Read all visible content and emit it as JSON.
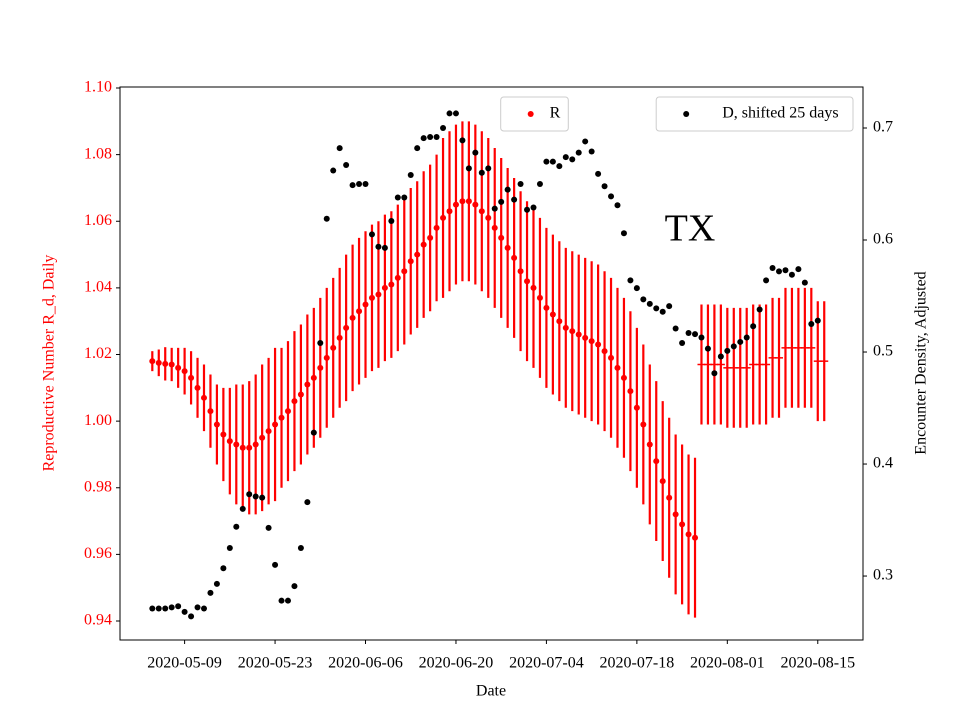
{
  "chart_data": {
    "type": "scatter",
    "annotation": "TX",
    "xlabel": "Date",
    "ylabel": "Reproductive Number R_d, Daily",
    "ylabel_color": "red",
    "y2label": "Encounter Density, Adjusted",
    "xlim": [
      "2020-04-29",
      "2020-08-22"
    ],
    "xticks": [
      "2020-05-09",
      "2020-05-23",
      "2020-06-06",
      "2020-06-20",
      "2020-07-04",
      "2020-07-18",
      "2020-08-01",
      "2020-08-15"
    ],
    "ylim": [
      0.9343,
      1.1003
    ],
    "yticks": [
      0.94,
      0.96,
      0.98,
      {
        "value": 1,
        "label": "1.00"
      },
      1.02,
      1.04,
      1.06,
      1.08,
      {
        "value": 1.1,
        "label": "1.10"
      }
    ],
    "y2lim": [
      0.2429,
      0.7366
    ],
    "y2ticks": [
      0.3,
      0.4,
      0.5,
      0.6,
      0.7
    ],
    "x": [
      "2020-05-04",
      "2020-05-05",
      "2020-05-06",
      "2020-05-07",
      "2020-05-08",
      "2020-05-09",
      "2020-05-10",
      "2020-05-11",
      "2020-05-12",
      "2020-05-13",
      "2020-05-14",
      "2020-05-15",
      "2020-05-16",
      "2020-05-17",
      "2020-05-18",
      "2020-05-19",
      "2020-05-20",
      "2020-05-21",
      "2020-05-22",
      "2020-05-23",
      "2020-05-24",
      "2020-05-25",
      "2020-05-26",
      "2020-05-27",
      "2020-05-28",
      "2020-05-29",
      "2020-05-30",
      "2020-05-31",
      "2020-06-01",
      "2020-06-02",
      "2020-06-03",
      "2020-06-04",
      "2020-06-05",
      "2020-06-06",
      "2020-06-07",
      "2020-06-08",
      "2020-06-09",
      "2020-06-10",
      "2020-06-11",
      "2020-06-12",
      "2020-06-13",
      "2020-06-14",
      "2020-06-15",
      "2020-06-16",
      "2020-06-17",
      "2020-06-18",
      "2020-06-19",
      "2020-06-20",
      "2020-06-21",
      "2020-06-22",
      "2020-06-23",
      "2020-06-24",
      "2020-06-25",
      "2020-06-26",
      "2020-06-27",
      "2020-06-28",
      "2020-06-29",
      "2020-06-30",
      "2020-07-01",
      "2020-07-02",
      "2020-07-03",
      "2020-07-04",
      "2020-07-05",
      "2020-07-06",
      "2020-07-07",
      "2020-07-08",
      "2020-07-09",
      "2020-07-10",
      "2020-07-11",
      "2020-07-12",
      "2020-07-13",
      "2020-07-14",
      "2020-07-15",
      "2020-07-16",
      "2020-07-17",
      "2020-07-18",
      "2020-07-19",
      "2020-07-20",
      "2020-07-21",
      "2020-07-22",
      "2020-07-23",
      "2020-07-24",
      "2020-07-25",
      "2020-07-26",
      "2020-07-27",
      "2020-07-28",
      "2020-07-29",
      "2020-07-30",
      "2020-07-31",
      "2020-08-01",
      "2020-08-02",
      "2020-08-03",
      "2020-08-04",
      "2020-08-05",
      "2020-08-06",
      "2020-08-07",
      "2020-08-08",
      "2020-08-09",
      "2020-08-10",
      "2020-08-11",
      "2020-08-12",
      "2020-08-13",
      "2020-08-14",
      "2020-08-15",
      "2020-08-16"
    ],
    "series": [
      {
        "name": "R",
        "color": "red",
        "marker": "dot",
        "legend": "upper center",
        "values": [
          1.018,
          1.0175,
          1.0172,
          1.017,
          1.016,
          1.015,
          1.013,
          1.01,
          1.007,
          1.003,
          0.999,
          0.996,
          0.994,
          0.993,
          0.992,
          0.992,
          0.993,
          0.995,
          0.997,
          0.999,
          1.001,
          1.003,
          1.006,
          1.008,
          1.011,
          1.013,
          1.016,
          1.019,
          1.022,
          1.025,
          1.028,
          1.031,
          1.033,
          1.035,
          1.037,
          1.038,
          1.04,
          1.041,
          1.043,
          1.045,
          1.048,
          1.05,
          1.053,
          1.055,
          1.058,
          1.061,
          1.063,
          1.065,
          1.066,
          1.066,
          1.065,
          1.063,
          1.061,
          1.058,
          1.055,
          1.052,
          1.049,
          1.045,
          1.042,
          1.04,
          1.037,
          1.034,
          1.032,
          1.03,
          1.028,
          1.027,
          1.026,
          1.025,
          1.024,
          1.023,
          1.021,
          1.019,
          1.016,
          1.013,
          1.009,
          1.004,
          0.999,
          0.993,
          0.988,
          0.982,
          0.977,
          0.972,
          0.969,
          0.966,
          0.965,
          null,
          null,
          null,
          null,
          null,
          null,
          null,
          null,
          null,
          null,
          null,
          null,
          null,
          null,
          null,
          null,
          null,
          null,
          null,
          null
        ],
        "errors": [
          0.003,
          0.004,
          0.005,
          0.005,
          0.006,
          0.007,
          0.008,
          0.009,
          0.01,
          0.011,
          0.012,
          0.014,
          0.016,
          0.018,
          0.019,
          0.02,
          0.021,
          0.022,
          0.022,
          0.023,
          0.021,
          0.021,
          0.021,
          0.021,
          0.021,
          0.021,
          0.021,
          0.021,
          0.021,
          0.021,
          0.022,
          0.022,
          0.022,
          0.022,
          0.022,
          0.022,
          0.022,
          0.022,
          0.022,
          0.022,
          0.022,
          0.022,
          0.022,
          0.022,
          0.022,
          0.024,
          0.024,
          0.024,
          0.024,
          0.024,
          0.024,
          0.024,
          0.024,
          0.024,
          0.024,
          0.024,
          0.024,
          0.024,
          0.024,
          0.024,
          0.024,
          0.024,
          0.024,
          0.024,
          0.024,
          0.024,
          0.024,
          0.024,
          0.024,
          0.024,
          0.024,
          0.024,
          0.024,
          0.024,
          0.024,
          0.024,
          0.024,
          0.024,
          0.024,
          0.024,
          0.024,
          0.024,
          0.024,
          0.024,
          0.024,
          null,
          null,
          null,
          null,
          null,
          null,
          null,
          null,
          null,
          null,
          null,
          null,
          null,
          null,
          null,
          null,
          null,
          null,
          null,
          null
        ]
      },
      {
        "color": "red",
        "marker": "hline",
        "values": [
          null,
          null,
          null,
          null,
          null,
          null,
          null,
          null,
          null,
          null,
          null,
          null,
          null,
          null,
          null,
          null,
          null,
          null,
          null,
          null,
          null,
          null,
          null,
          null,
          null,
          null,
          null,
          null,
          null,
          null,
          null,
          null,
          null,
          null,
          null,
          null,
          null,
          null,
          null,
          null,
          null,
          null,
          null,
          null,
          null,
          null,
          null,
          null,
          null,
          null,
          null,
          null,
          null,
          null,
          null,
          null,
          null,
          null,
          null,
          null,
          null,
          null,
          null,
          null,
          null,
          null,
          null,
          null,
          null,
          null,
          null,
          null,
          null,
          null,
          null,
          null,
          null,
          null,
          null,
          null,
          null,
          null,
          null,
          null,
          null,
          1.017,
          1.017,
          1.017,
          1.017,
          1.016,
          1.016,
          1.016,
          1.016,
          1.017,
          1.017,
          1.017,
          1.019,
          1.019,
          1.022,
          1.022,
          1.022,
          1.022,
          1.022,
          1.018,
          1.018
        ],
        "errors": [
          null,
          null,
          null,
          null,
          null,
          null,
          null,
          null,
          null,
          null,
          null,
          null,
          null,
          null,
          null,
          null,
          null,
          null,
          null,
          null,
          null,
          null,
          null,
          null,
          null,
          null,
          null,
          null,
          null,
          null,
          null,
          null,
          null,
          null,
          null,
          null,
          null,
          null,
          null,
          null,
          null,
          null,
          null,
          null,
          null,
          null,
          null,
          null,
          null,
          null,
          null,
          null,
          null,
          null,
          null,
          null,
          null,
          null,
          null,
          null,
          null,
          null,
          null,
          null,
          null,
          null,
          null,
          null,
          null,
          null,
          null,
          null,
          null,
          null,
          null,
          null,
          null,
          null,
          null,
          null,
          null,
          null,
          null,
          null,
          null,
          0.018,
          0.018,
          0.018,
          0.018,
          0.018,
          0.018,
          0.018,
          0.018,
          0.018,
          0.018,
          0.018,
          0.018,
          0.018,
          0.018,
          0.018,
          0.018,
          0.018,
          0.018,
          0.018,
          0.018
        ]
      },
      {
        "name": "D, shifted 25 days",
        "color": "black",
        "marker": "dot",
        "axis": "y2",
        "legend": "upper right",
        "values": [
          0.271,
          0.271,
          0.271,
          0.272,
          0.273,
          0.268,
          0.264,
          0.272,
          0.271,
          0.285,
          0.293,
          0.307,
          0.325,
          0.344,
          0.36,
          0.373,
          0.371,
          0.37,
          0.343,
          0.31,
          0.278,
          0.278,
          0.291,
          0.325,
          0.366,
          0.428,
          0.508,
          0.619,
          0.662,
          0.682,
          0.667,
          0.649,
          0.65,
          0.65,
          0.605,
          0.594,
          0.593,
          0.617,
          0.638,
          0.638,
          0.658,
          0.682,
          0.691,
          0.692,
          0.692,
          0.7,
          0.713,
          0.713,
          0.689,
          0.664,
          0.678,
          0.66,
          0.664,
          0.628,
          0.634,
          0.645,
          0.636,
          0.65,
          0.627,
          0.629,
          0.65,
          0.67,
          0.67,
          0.666,
          0.674,
          0.672,
          0.678,
          0.688,
          0.679,
          0.659,
          0.648,
          0.639,
          0.631,
          0.606,
          0.564,
          0.557,
          0.547,
          0.543,
          0.539,
          0.536,
          0.541,
          0.521,
          0.508,
          0.517,
          0.516,
          0.513,
          0.503,
          0.481,
          0.496,
          0.501,
          0.505,
          0.509,
          0.513,
          0.523,
          0.538,
          0.564,
          0.575,
          0.572,
          0.573,
          0.569,
          0.574,
          0.562,
          0.525,
          0.528,
          null
        ]
      }
    ]
  }
}
